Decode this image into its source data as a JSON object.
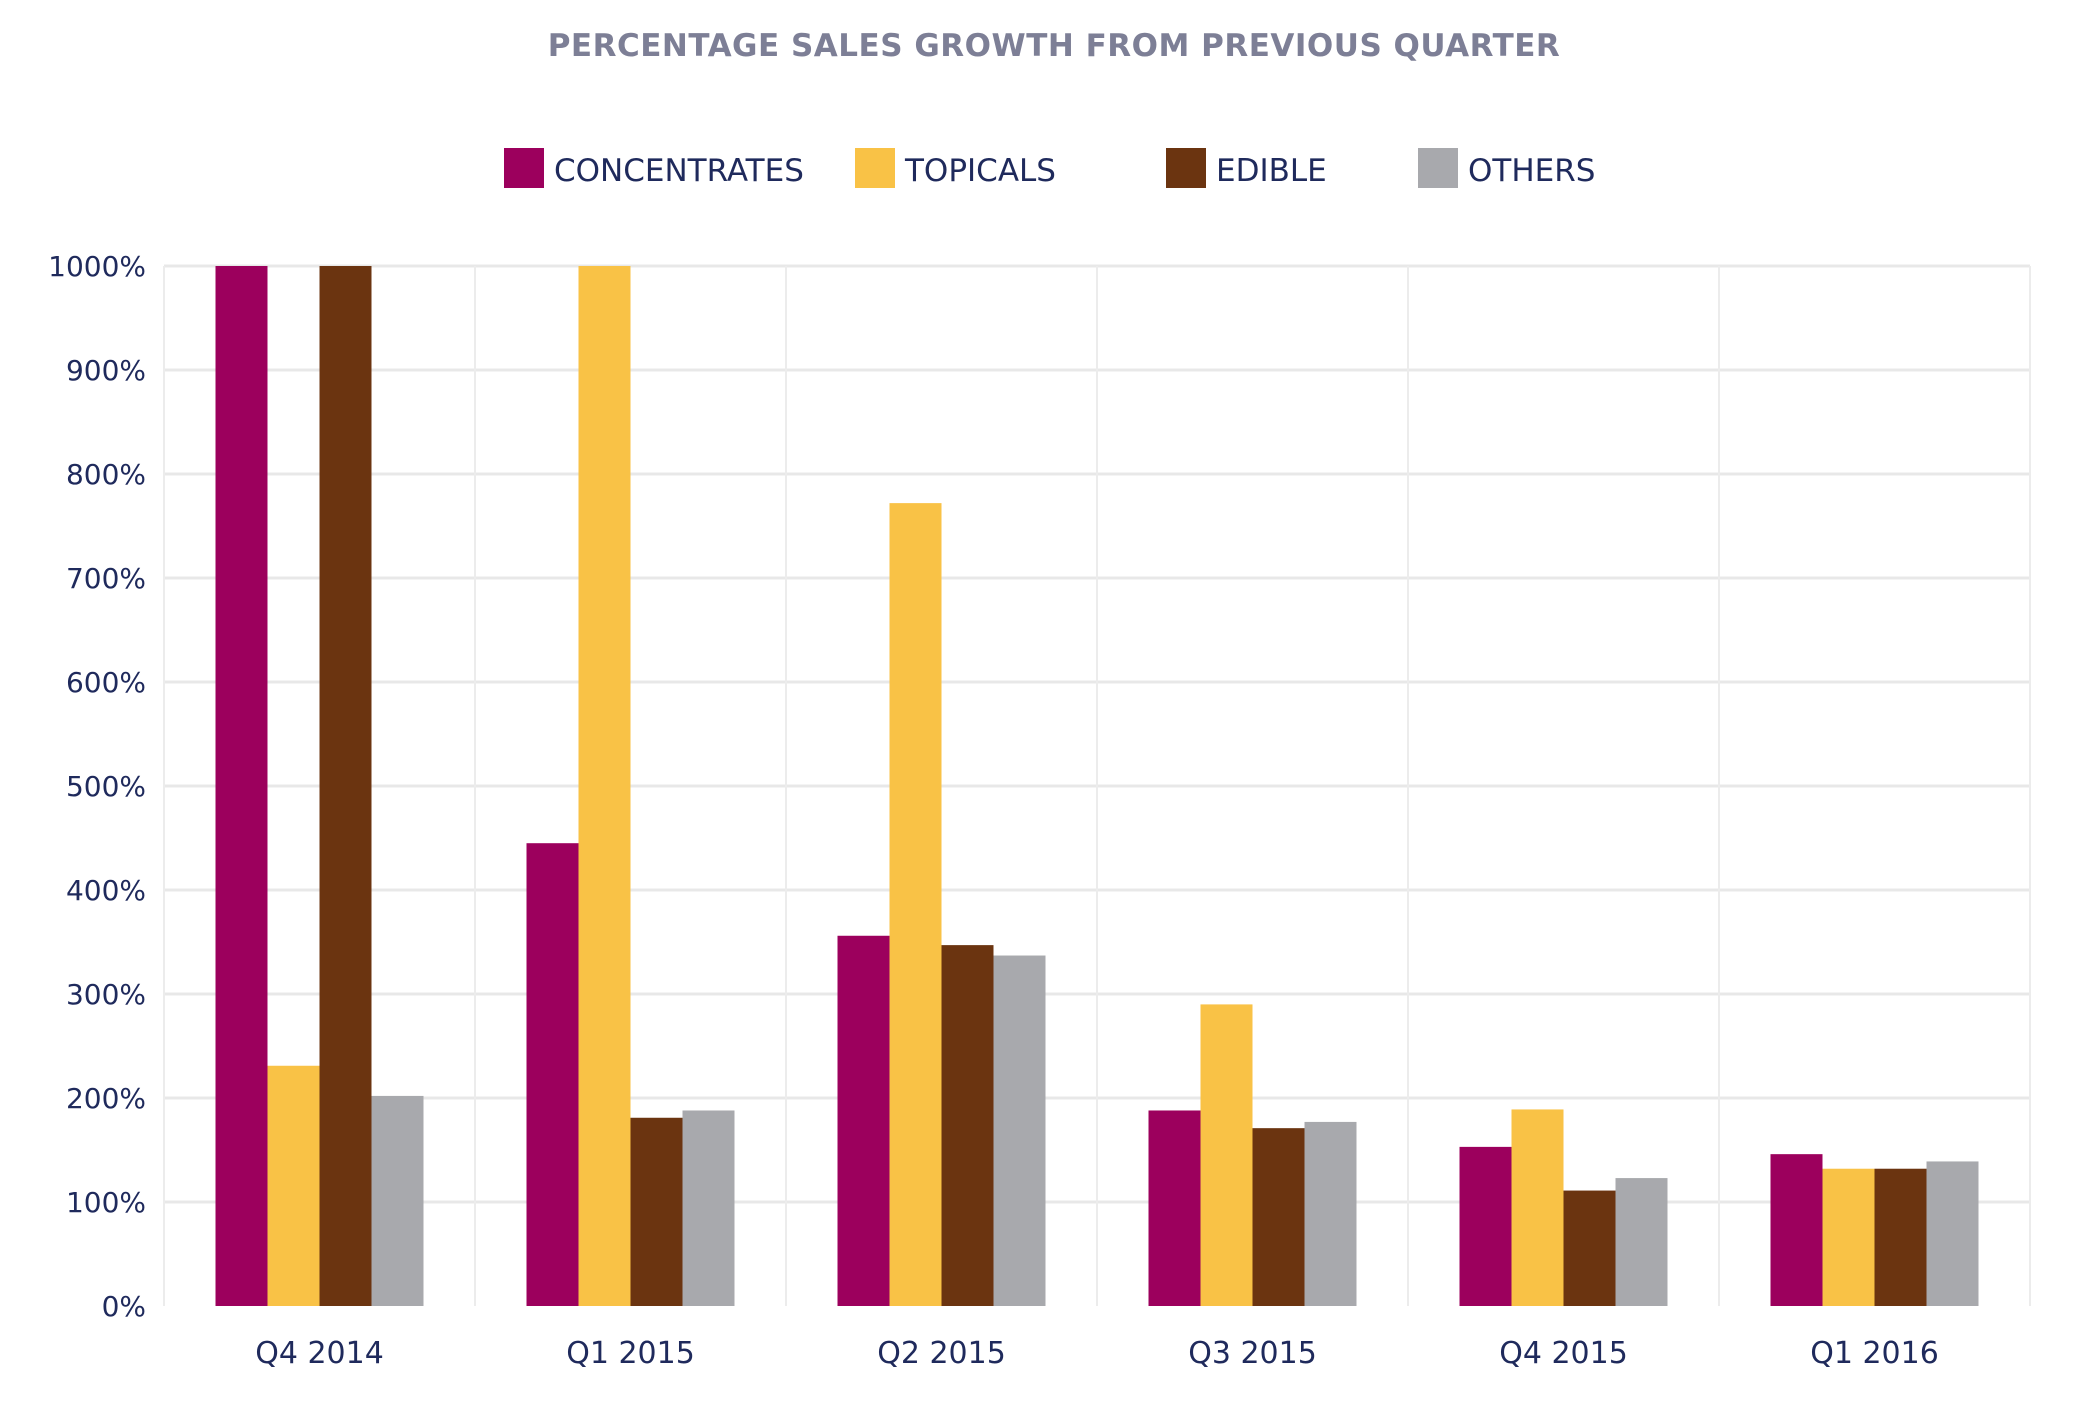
{
  "chart_data": {
    "type": "bar",
    "title": "PERCENTAGE SALES GROWTH FROM PREVIOUS QUARTER",
    "xlabel": "",
    "ylabel": "",
    "categories": [
      "Q4 2014",
      "Q1 2015",
      "Q2 2015",
      "Q3 2015",
      "Q4 2015",
      "Q1 2016"
    ],
    "series": [
      {
        "name": "CONCENTRATES",
        "color": "#9c005d",
        "values": [
          1000,
          445,
          356,
          188,
          153,
          146
        ]
      },
      {
        "name": "TOPICALS",
        "color": "#f9c246",
        "values": [
          231,
          1000,
          772,
          290,
          189,
          132
        ]
      },
      {
        "name": "EDIBLE",
        "color": "#6b3410",
        "values": [
          1000,
          181,
          347,
          171,
          111,
          132
        ]
      },
      {
        "name": "OTHERS",
        "color": "#a8a9ad",
        "values": [
          202,
          188,
          337,
          177,
          123,
          139
        ]
      }
    ],
    "ylim": [
      0,
      1000
    ],
    "yticks": [
      0,
      100,
      200,
      300,
      400,
      500,
      600,
      700,
      800,
      900,
      1000
    ],
    "ytick_labels": [
      "0%",
      "100%",
      "200%",
      "300%",
      "400%",
      "500%",
      "600%",
      "700%",
      "800%",
      "900%",
      "1000%"
    ],
    "grid": true,
    "legend_position": "top"
  }
}
